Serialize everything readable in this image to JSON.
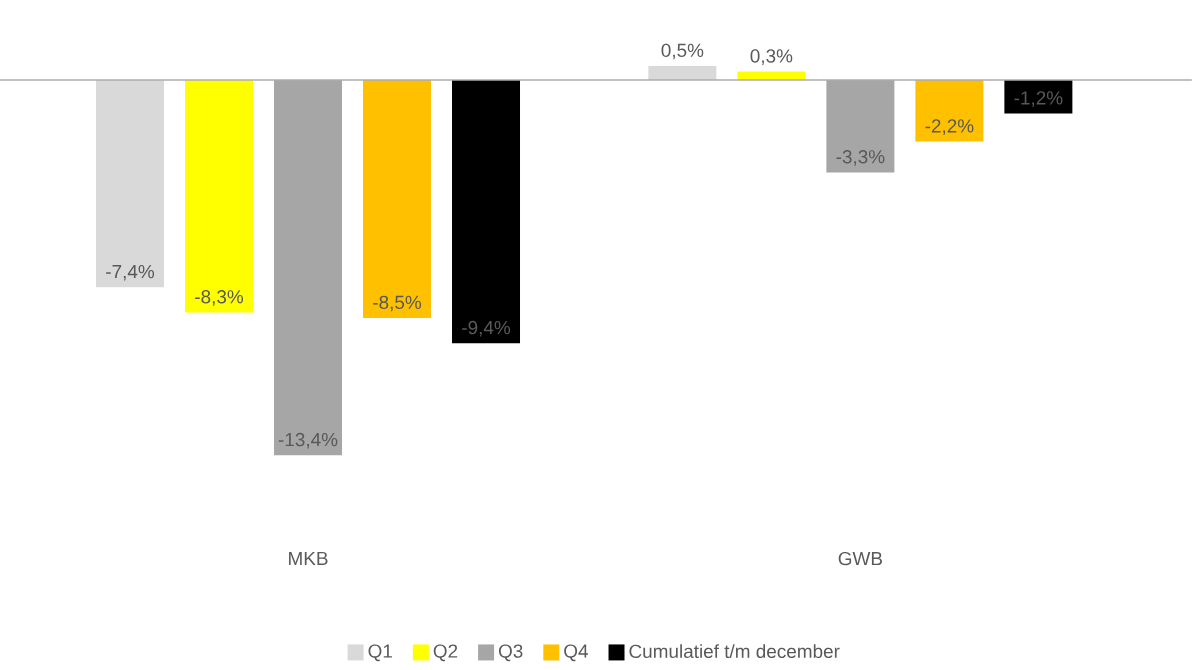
{
  "chart_data": {
    "type": "bar",
    "categories": [
      "MKB",
      "GWB"
    ],
    "series": [
      {
        "name": "Q1",
        "color": "#d9d9d9",
        "values": [
          -7.4,
          0.5
        ],
        "value_labels": [
          "-7,4%",
          "0,5%"
        ]
      },
      {
        "name": "Q2",
        "color": "#ffff00",
        "values": [
          -8.3,
          0.3
        ],
        "value_labels": [
          "-8,3%",
          "0,3%"
        ]
      },
      {
        "name": "Q3",
        "color": "#a6a6a6",
        "values": [
          -13.4,
          -3.3
        ],
        "value_labels": [
          "-13,4%",
          "-3,3%"
        ]
      },
      {
        "name": "Q4",
        "color": "#ffc000",
        "values": [
          -8.5,
          -2.2
        ],
        "value_labels": [
          "-8,5%",
          "-2,2%"
        ]
      },
      {
        "name": "Cumulatief t/m december",
        "color": "#000000",
        "values": [
          -9.4,
          -1.2
        ],
        "value_labels": [
          "-9,4%",
          "-1,2%"
        ]
      }
    ],
    "legend": "bottom"
  }
}
